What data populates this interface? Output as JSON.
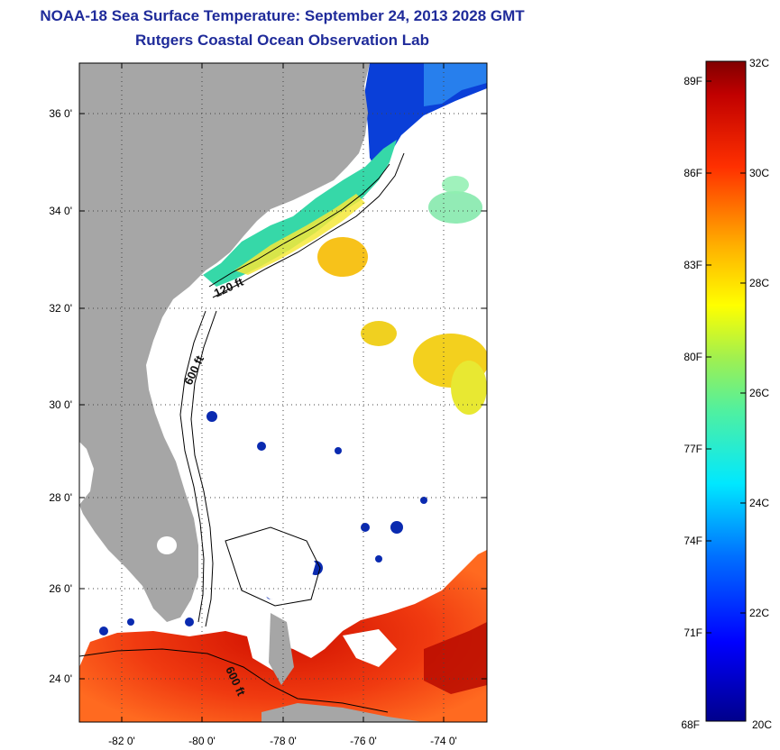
{
  "title": {
    "line1": "NOAA-18 Sea Surface Temperature:  September 24, 2013 2028 GMT",
    "line2": "Rutgers Coastal Ocean Observation Lab"
  },
  "map": {
    "lat_ticks": [
      "36 0'",
      "34 0'",
      "32 0'",
      "30 0'",
      "28 0'",
      "26 0'",
      "24 0'"
    ],
    "lon_ticks": [
      "-82 0'",
      "-80 0'",
      "-78 0'",
      "-76 0'",
      "-74 0'"
    ],
    "lat_values": [
      36,
      34,
      32,
      30,
      28,
      26,
      24
    ],
    "lon_values": [
      -82,
      -80,
      -78,
      -76,
      -74
    ],
    "extent": {
      "lon_min": -83,
      "lon_max": -73,
      "lat_min": 23,
      "lat_max": 37
    },
    "grid": "dotted",
    "contours": [
      {
        "label": "120 ft"
      },
      {
        "label": "600 ft"
      },
      {
        "label": "600 ft"
      }
    ],
    "land_color": "#a6a6a6"
  },
  "colorbar": {
    "f_labels": [
      "89F",
      "86F",
      "83F",
      "80F",
      "77F",
      "74F",
      "71F",
      "68F"
    ],
    "f_values": [
      89,
      86,
      83,
      80,
      77,
      74,
      71,
      68
    ],
    "c_labels": [
      "32C",
      "30C",
      "28C",
      "26C",
      "24C",
      "22C",
      "20C"
    ],
    "c_values": [
      32,
      30,
      28,
      26,
      24,
      22,
      20
    ],
    "range_c": [
      20,
      32
    ]
  },
  "colors": {
    "title": "#1f2b9a",
    "land": "#a6a6a6"
  }
}
